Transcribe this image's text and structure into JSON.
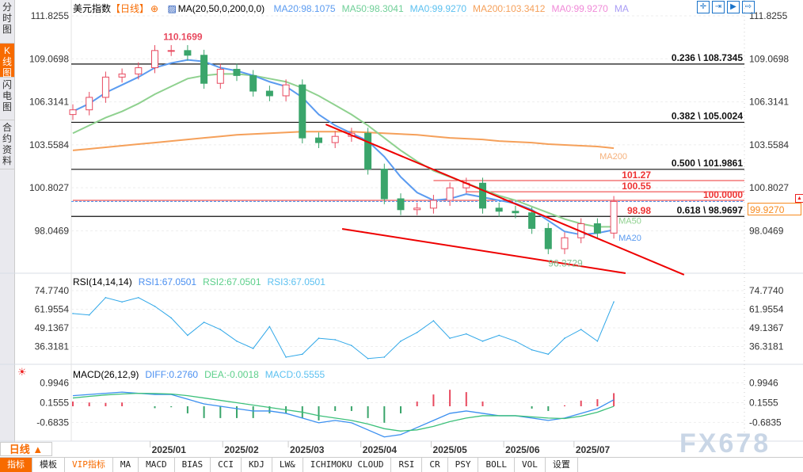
{
  "side_tabs": [
    "分时图",
    "K线图",
    "闪电图",
    "合约资料"
  ],
  "legend": {
    "symbol": "美元指数",
    "period": "【日线】",
    "ma_params": "MA(20,50,0,200,0,0)",
    "items": [
      {
        "text": "MA20:98.1075",
        "color": "#5b9bf0"
      },
      {
        "text": "MA50:98.3041",
        "color": "#6fcf97"
      },
      {
        "text": "MA0:99.9270",
        "color": "#5bc0f0"
      },
      {
        "text": "MA200:103.3412",
        "color": "#f5a05a"
      },
      {
        "text": "MA0:99.9270",
        "color": "#f08ad8"
      },
      {
        "text": "MA",
        "color": "#a99cf5"
      }
    ]
  },
  "toolbar_icons": [
    "crosshair-icon",
    "fit-range-icon",
    "play-icon",
    "exit-icon"
  ],
  "price_axis": [
    "111.8255",
    "109.0698",
    "106.3141",
    "103.5584",
    "100.8027",
    "98.0469"
  ],
  "rsi_axis": [
    "74.7740",
    "61.9554",
    "49.1367",
    "36.3181"
  ],
  "macd_axis": [
    "0.9946",
    "0.1555",
    "-0.6835"
  ],
  "rsi_header": {
    "title": "RSI(14,14,14)",
    "items": [
      {
        "text": "RSI1:67.0501",
        "color": "#4a8ff0"
      },
      {
        "text": "RSI2:67.0501",
        "color": "#5ccf8a"
      },
      {
        "text": "RSI3:67.0501",
        "color": "#5bc0f0"
      }
    ]
  },
  "macd_header": {
    "title": "MACD(26,12,9)",
    "items": [
      {
        "text": "DIFF:0.2760",
        "color": "#4a8ff0"
      },
      {
        "text": "DEA:-0.0018",
        "color": "#5ccf8a"
      },
      {
        "text": "MACD:0.5555",
        "color": "#5bc0f0"
      }
    ]
  },
  "last_price": "99.9270",
  "period_button": "日线 ▲",
  "watermark": "FX678",
  "bottom_tabs": [
    "指标",
    "模板",
    "VIP指标",
    "MA",
    "MACD",
    "BIAS",
    "CCI",
    "KDJ",
    "LW&",
    "ICHIMOKU CLOUD",
    "RSI",
    "CR",
    "PSY",
    "BOLL",
    "VOL",
    "设置"
  ],
  "chart_data": {
    "type": "candlestick",
    "title": "美元指数",
    "x_ticks": [
      {
        "date": "2025-01-01",
        "label": "2025/01"
      },
      {
        "date": "2025-02-01",
        "label": "2025/02"
      },
      {
        "date": "2025-03-01",
        "label": "2025/03"
      },
      {
        "date": "2025-04-01",
        "label": "2025/04"
      },
      {
        "date": "2025-05-01",
        "label": "2025/05"
      },
      {
        "date": "2025-06-01",
        "label": "2025/06"
      },
      {
        "date": "2025-07-01",
        "label": "2025/07"
      }
    ],
    "ylim": [
      95.2,
      111.8255
    ],
    "dates": [
      "2024-11-29",
      "2024-12-06",
      "2024-12-13",
      "2024-12-20",
      "2024-12-27",
      "2025-01-03",
      "2025-01-10",
      "2025-01-17",
      "2025-01-24",
      "2025-01-31",
      "2025-02-07",
      "2025-02-14",
      "2025-02-21",
      "2025-02-28",
      "2025-03-07",
      "2025-03-14",
      "2025-03-21",
      "2025-03-28",
      "2025-04-04",
      "2025-04-11",
      "2025-04-18",
      "2025-04-25",
      "2025-05-02",
      "2025-05-09",
      "2025-05-16",
      "2025-05-23",
      "2025-05-30",
      "2025-06-06",
      "2025-06-13",
      "2025-06-20",
      "2025-06-27",
      "2025-07-04",
      "2025-07-11",
      "2025-07-18"
    ],
    "close": [
      105.8,
      106.6,
      107.9,
      108.1,
      108.5,
      109.6,
      109.6,
      109.3,
      107.5,
      108.4,
      108.0,
      107.0,
      106.7,
      107.4,
      104.0,
      103.7,
      104.1,
      104.3,
      102.0,
      100.1,
      99.4,
      99.5,
      100.0,
      100.8,
      101.1,
      99.5,
      99.3,
      99.2,
      98.2,
      96.9,
      97.6,
      98.5,
      97.9,
      99.927
    ],
    "ma20": [
      105.7,
      106.2,
      106.9,
      107.4,
      107.9,
      108.5,
      108.8,
      109.0,
      108.9,
      108.5,
      108.3,
      108.0,
      107.6,
      107.3,
      106.6,
      105.5,
      104.8,
      104.3,
      103.8,
      102.8,
      101.5,
      100.5,
      100.0,
      100.1,
      100.4,
      100.2,
      100.0,
      99.8,
      99.4,
      98.7,
      98.0,
      97.8,
      97.9,
      98.1075
    ],
    "ma50": [
      104.3,
      104.8,
      105.3,
      105.7,
      106.2,
      106.8,
      107.3,
      107.8,
      108.0,
      108.1,
      108.1,
      108.0,
      107.8,
      107.6,
      107.2,
      106.7,
      106.1,
      105.5,
      104.8,
      104.0,
      103.2,
      102.5,
      101.9,
      101.5,
      101.1,
      100.7,
      100.3,
      100.0,
      99.6,
      99.2,
      98.8,
      98.5,
      98.3,
      98.3041
    ],
    "ma200": [
      103.2,
      103.3,
      103.4,
      103.5,
      103.6,
      103.7,
      103.8,
      103.9,
      104.0,
      104.1,
      104.2,
      104.25,
      104.3,
      104.35,
      104.4,
      104.4,
      104.4,
      104.4,
      104.35,
      104.3,
      104.25,
      104.2,
      104.1,
      104.0,
      103.95,
      103.9,
      103.8,
      103.75,
      103.7,
      103.6,
      103.55,
      103.5,
      103.45,
      103.3412
    ],
    "high_label": {
      "date": "2025-01-10",
      "value": 110.1699,
      "text": "110.1699"
    },
    "low_label": {
      "date": "2025-06-20",
      "value": 96.3729,
      "text": "96.3729"
    },
    "fib_levels": [
      {
        "price": 108.7345,
        "text": "0.236 \\ 108.7345"
      },
      {
        "price": 105.0024,
        "text": "0.382 \\ 105.0024"
      },
      {
        "price": 101.9861,
        "text": "0.500 \\ 101.9861"
      },
      {
        "price": 98.9697,
        "text": "0.618 \\ 98.9697"
      }
    ],
    "red_levels": [
      {
        "price": 101.27,
        "text": "101.27",
        "from": "2025-05-02"
      },
      {
        "price": 100.55,
        "text": "100.55",
        "from": "2025-05-16"
      },
      {
        "price": 100.0,
        "text": "100.0000",
        "from": "2024-11-29"
      },
      {
        "price": 98.98,
        "text": "98.98",
        "from": "2025-07-11"
      }
    ],
    "trendlines": [
      {
        "from": {
          "date": "2025-03-17",
          "price": 104.87
        },
        "to": {
          "date": "2025-08-17",
          "price": 95.23
        }
      },
      {
        "from": {
          "date": "2025-03-24",
          "price": 98.17
        },
        "to": {
          "date": "2025-07-23",
          "price": 95.33
        }
      }
    ],
    "ma_end_labels": [
      "MA50",
      "MA20",
      "MA200"
    ],
    "rsi": {
      "ylim": [
        22,
        80
      ],
      "values": [
        59,
        58,
        70,
        67,
        70,
        64,
        56,
        44,
        53,
        48,
        40,
        35,
        50,
        29,
        31,
        42,
        41,
        37,
        28,
        29,
        40,
        46,
        54,
        42,
        45,
        40,
        44,
        40,
        34,
        31,
        42,
        48,
        40,
        67.0501
      ]
    },
    "macd": {
      "ylim": [
        -1.6,
        1.2
      ],
      "diff": [
        0.45,
        0.5,
        0.55,
        0.6,
        0.55,
        0.5,
        0.5,
        0.3,
        0.1,
        0.0,
        -0.1,
        -0.2,
        -0.2,
        -0.3,
        -0.5,
        -0.7,
        -0.6,
        -0.7,
        -1.0,
        -1.3,
        -1.2,
        -0.9,
        -0.6,
        -0.3,
        -0.2,
        -0.3,
        -0.4,
        -0.4,
        -0.5,
        -0.6,
        -0.5,
        -0.3,
        -0.1,
        0.276
      ],
      "dea": [
        0.35,
        0.42,
        0.48,
        0.52,
        0.55,
        0.54,
        0.52,
        0.45,
        0.35,
        0.25,
        0.15,
        0.05,
        -0.05,
        -0.15,
        -0.25,
        -0.4,
        -0.5,
        -0.6,
        -0.75,
        -0.95,
        -1.05,
        -1.0,
        -0.85,
        -0.65,
        -0.5,
        -0.4,
        -0.4,
        -0.4,
        -0.45,
        -0.5,
        -0.52,
        -0.42,
        -0.25,
        -0.0018
      ]
    }
  }
}
